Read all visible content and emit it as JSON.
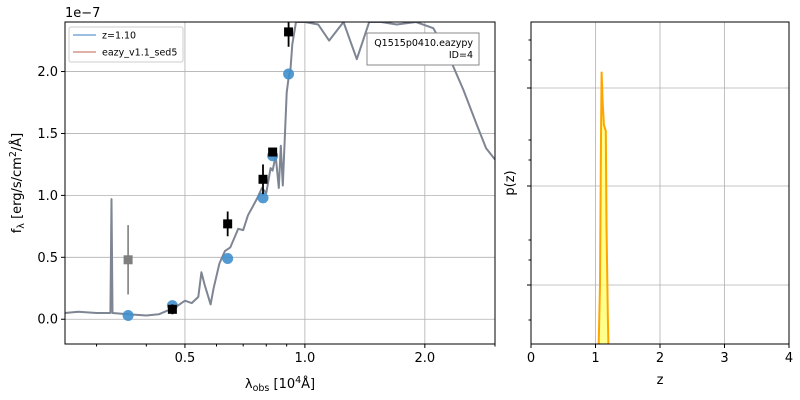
{
  "chart_data": [
    {
      "type": "line",
      "title": "",
      "xlabel": "λobs [10^4 Å]",
      "xlabel_main": "λ",
      "xlabel_sub": "obs",
      "xlabel_rest": " [10",
      "xlabel_sup": "4",
      "xlabel_end": "Å]",
      "ylabel": "fλ [erg/s/cm²/Å]",
      "ylabel_main": "f",
      "ylabel_sub": "λ",
      "ylabel_rest": " [erg/s/cm",
      "ylabel_sup": "2",
      "ylabel_end": "/Å]",
      "y_offset_label": "1e−7",
      "xscale": "log",
      "xlim": [
        0.25,
        3.0
      ],
      "ylim": [
        -0.2,
        2.4
      ],
      "xticks": [
        0.5,
        1.0,
        2.0
      ],
      "xtick_labels": [
        "0.5",
        "1.0",
        "2.0"
      ],
      "yticks": [
        0.0,
        0.5,
        1.0,
        1.5,
        2.0
      ],
      "ytick_labels": [
        "0.0",
        "0.5",
        "1.0",
        "1.5",
        "2.0"
      ],
      "grid": true,
      "legend_position": "top-left",
      "legend": [
        {
          "label": "z=1.10",
          "color": "#7aaad6"
        },
        {
          "label": "eazy_v1.1_sed5",
          "color": "#d4978c"
        }
      ],
      "annotation": {
        "line1": "Q1515p0410.eazypy",
        "line2": "ID=4"
      },
      "template_color": "#7e8593",
      "template_curve": [
        [
          0.25,
          0.05
        ],
        [
          0.27,
          0.06
        ],
        [
          0.3,
          0.05
        ],
        [
          0.325,
          0.05
        ],
        [
          0.327,
          0.97
        ],
        [
          0.329,
          0.05
        ],
        [
          0.36,
          0.04
        ],
        [
          0.4,
          0.03
        ],
        [
          0.43,
          0.04
        ],
        [
          0.46,
          0.08
        ],
        [
          0.48,
          0.11
        ],
        [
          0.5,
          0.15
        ],
        [
          0.52,
          0.13
        ],
        [
          0.54,
          0.18
        ],
        [
          0.55,
          0.38
        ],
        [
          0.56,
          0.28
        ],
        [
          0.58,
          0.12
        ],
        [
          0.59,
          0.25
        ],
        [
          0.61,
          0.45
        ],
        [
          0.63,
          0.55
        ],
        [
          0.65,
          0.58
        ],
        [
          0.67,
          0.68
        ],
        [
          0.68,
          0.73
        ],
        [
          0.7,
          0.72
        ],
        [
          0.72,
          0.84
        ],
        [
          0.74,
          0.91
        ],
        [
          0.76,
          0.98
        ],
        [
          0.78,
          1.06
        ],
        [
          0.8,
          1.02
        ],
        [
          0.82,
          1.22
        ],
        [
          0.83,
          1.2
        ],
        [
          0.845,
          1.32
        ],
        [
          0.86,
          1.06
        ],
        [
          0.87,
          1.4
        ],
        [
          0.88,
          1.08
        ],
        [
          0.9,
          1.83
        ],
        [
          0.91,
          1.95
        ],
        [
          0.92,
          2.02
        ],
        [
          0.93,
          2.22
        ],
        [
          0.95,
          2.4
        ],
        [
          1.0,
          2.4
        ],
        [
          1.08,
          2.38
        ],
        [
          1.15,
          2.25
        ],
        [
          1.25,
          2.4
        ],
        [
          1.35,
          2.1
        ],
        [
          1.45,
          2.4
        ],
        [
          1.55,
          2.4
        ],
        [
          1.7,
          2.38
        ],
        [
          1.9,
          2.4
        ],
        [
          2.1,
          2.35
        ],
        [
          2.3,
          2.12
        ],
        [
          2.5,
          1.85
        ],
        [
          2.7,
          1.57
        ],
        [
          2.85,
          1.38
        ],
        [
          3.0,
          1.29
        ]
      ],
      "model_points": {
        "color": "#3f8fcc",
        "x": [
          0.36,
          0.465,
          0.64,
          0.785,
          0.83,
          0.91
        ],
        "y": [
          0.03,
          0.11,
          0.49,
          0.98,
          1.32,
          1.98
        ]
      },
      "observed_points": {
        "color": "#000000",
        "x": [
          0.465,
          0.64,
          0.785,
          0.83,
          0.91
        ],
        "y": [
          0.08,
          0.77,
          1.13,
          1.35,
          2.32
        ],
        "yerr": [
          0.04,
          0.1,
          0.12,
          0.03,
          0.12
        ]
      },
      "lowsnr_point": {
        "color": "#7f7f7f",
        "x": 0.36,
        "y": 0.48,
        "yerr": 0.28
      }
    },
    {
      "type": "area",
      "xlabel": "z",
      "ylabel": "p(z)",
      "yscale": "log",
      "xlim": [
        0,
        4
      ],
      "xticks": [
        0,
        1,
        2,
        3,
        4
      ],
      "xtick_labels": [
        "0",
        "1",
        "2",
        "3",
        "4"
      ],
      "grid": true,
      "line_color": "#ffa500",
      "fill_color": "#ffff66",
      "pz_curve": [
        [
          1.05,
          0.0
        ],
        [
          1.07,
          0.2
        ],
        [
          1.085,
          0.7
        ],
        [
          1.095,
          0.92
        ],
        [
          1.11,
          0.82
        ],
        [
          1.13,
          0.74
        ],
        [
          1.16,
          0.72
        ],
        [
          1.17,
          0.4
        ],
        [
          1.19,
          0.1
        ],
        [
          1.2,
          0.0
        ]
      ]
    }
  ]
}
